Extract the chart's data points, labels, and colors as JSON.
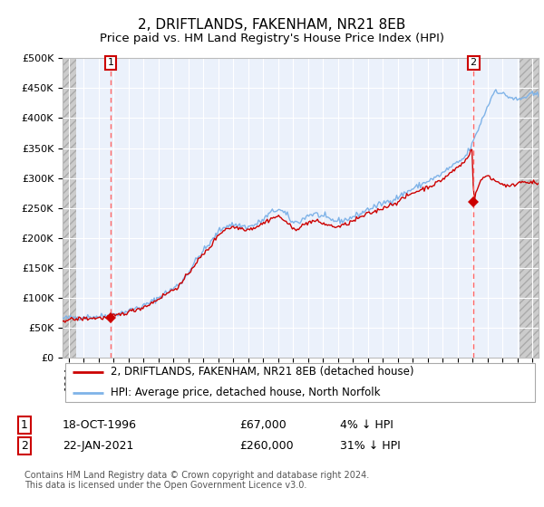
{
  "title": "2, DRIFTLANDS, FAKENHAM, NR21 8EB",
  "subtitle": "Price paid vs. HM Land Registry's House Price Index (HPI)",
  "ylim": [
    0,
    500000
  ],
  "yticks": [
    0,
    50000,
    100000,
    150000,
    200000,
    250000,
    300000,
    350000,
    400000,
    450000,
    500000
  ],
  "ytick_labels": [
    "£0",
    "£50K",
    "£100K",
    "£150K",
    "£200K",
    "£250K",
    "£300K",
    "£350K",
    "£400K",
    "£450K",
    "£500K"
  ],
  "xlim_start": 1993.6,
  "xlim_end": 2025.4,
  "hpi_color": "#7FB3E8",
  "price_color": "#CC0000",
  "marker_color": "#CC0000",
  "dashed_line_color": "#FF6666",
  "background_color": "#EBF1FB",
  "grid_color": "#FFFFFF",
  "legend_label_price": "2, DRIFTLANDS, FAKENHAM, NR21 8EB (detached house)",
  "legend_label_hpi": "HPI: Average price, detached house, North Norfolk",
  "sale1_year": 1996.8,
  "sale1_price": 67000,
  "sale2_year": 2021.05,
  "sale2_price": 260000,
  "hpi_anchors": [
    [
      1993.6,
      65000
    ],
    [
      1994.0,
      66000
    ],
    [
      1994.5,
      67000
    ],
    [
      1995.0,
      67500
    ],
    [
      1995.5,
      68000
    ],
    [
      1996.0,
      68500
    ],
    [
      1996.5,
      69500
    ],
    [
      1997.0,
      72000
    ],
    [
      1997.5,
      74000
    ],
    [
      1998.0,
      78000
    ],
    [
      1998.5,
      82000
    ],
    [
      1999.0,
      86000
    ],
    [
      1999.5,
      92000
    ],
    [
      2000.0,
      100000
    ],
    [
      2000.5,
      108000
    ],
    [
      2001.0,
      115000
    ],
    [
      2001.5,
      125000
    ],
    [
      2002.0,
      142000
    ],
    [
      2002.5,
      162000
    ],
    [
      2003.0,
      178000
    ],
    [
      2003.5,
      192000
    ],
    [
      2004.0,
      210000
    ],
    [
      2004.5,
      220000
    ],
    [
      2005.0,
      222000
    ],
    [
      2005.5,
      220000
    ],
    [
      2006.0,
      218000
    ],
    [
      2006.5,
      222000
    ],
    [
      2007.0,
      230000
    ],
    [
      2007.5,
      242000
    ],
    [
      2008.0,
      248000
    ],
    [
      2008.5,
      240000
    ],
    [
      2009.0,
      225000
    ],
    [
      2009.5,
      228000
    ],
    [
      2010.0,
      238000
    ],
    [
      2010.5,
      240000
    ],
    [
      2011.0,
      235000
    ],
    [
      2011.5,
      230000
    ],
    [
      2012.0,
      228000
    ],
    [
      2012.5,
      230000
    ],
    [
      2013.0,
      235000
    ],
    [
      2013.5,
      240000
    ],
    [
      2014.0,
      248000
    ],
    [
      2014.5,
      252000
    ],
    [
      2015.0,
      258000
    ],
    [
      2015.5,
      262000
    ],
    [
      2016.0,
      268000
    ],
    [
      2016.5,
      275000
    ],
    [
      2017.0,
      282000
    ],
    [
      2017.5,
      288000
    ],
    [
      2018.0,
      295000
    ],
    [
      2018.5,
      300000
    ],
    [
      2019.0,
      308000
    ],
    [
      2019.5,
      318000
    ],
    [
      2020.0,
      325000
    ],
    [
      2020.5,
      335000
    ],
    [
      2021.0,
      358000
    ],
    [
      2021.5,
      390000
    ],
    [
      2022.0,
      420000
    ],
    [
      2022.5,
      448000
    ],
    [
      2023.0,
      440000
    ],
    [
      2023.5,
      435000
    ],
    [
      2024.0,
      430000
    ],
    [
      2024.5,
      435000
    ],
    [
      2025.0,
      440000
    ],
    [
      2025.4,
      438000
    ]
  ],
  "price_anchors": [
    [
      1993.6,
      62000
    ],
    [
      1994.0,
      63000
    ],
    [
      1994.5,
      64000
    ],
    [
      1995.0,
      65000
    ],
    [
      1995.5,
      65500
    ],
    [
      1996.0,
      66000
    ],
    [
      1996.5,
      66500
    ],
    [
      1996.8,
      67000
    ],
    [
      1997.0,
      69000
    ],
    [
      1997.5,
      72000
    ],
    [
      1998.0,
      76000
    ],
    [
      1998.5,
      80000
    ],
    [
      1999.0,
      84000
    ],
    [
      1999.5,
      90000
    ],
    [
      2000.0,
      98000
    ],
    [
      2000.5,
      106000
    ],
    [
      2001.0,
      113000
    ],
    [
      2001.5,
      122000
    ],
    [
      2002.0,
      140000
    ],
    [
      2002.5,
      158000
    ],
    [
      2003.0,
      172000
    ],
    [
      2003.5,
      186000
    ],
    [
      2004.0,
      205000
    ],
    [
      2004.5,
      215000
    ],
    [
      2005.0,
      218000
    ],
    [
      2005.5,
      216000
    ],
    [
      2006.0,
      214000
    ],
    [
      2006.5,
      218000
    ],
    [
      2007.0,
      224000
    ],
    [
      2007.5,
      232000
    ],
    [
      2008.0,
      236000
    ],
    [
      2008.5,
      228000
    ],
    [
      2009.0,
      214000
    ],
    [
      2009.5,
      218000
    ],
    [
      2010.0,
      226000
    ],
    [
      2010.5,
      228000
    ],
    [
      2011.0,
      224000
    ],
    [
      2011.5,
      220000
    ],
    [
      2012.0,
      218000
    ],
    [
      2012.5,
      222000
    ],
    [
      2013.0,
      228000
    ],
    [
      2013.5,
      234000
    ],
    [
      2014.0,
      240000
    ],
    [
      2014.5,
      244000
    ],
    [
      2015.0,
      250000
    ],
    [
      2015.5,
      255000
    ],
    [
      2016.0,
      260000
    ],
    [
      2016.5,
      268000
    ],
    [
      2017.0,
      275000
    ],
    [
      2017.5,
      280000
    ],
    [
      2018.0,
      285000
    ],
    [
      2018.5,
      290000
    ],
    [
      2019.0,
      298000
    ],
    [
      2019.5,
      308000
    ],
    [
      2020.0,
      318000
    ],
    [
      2020.5,
      328000
    ],
    [
      2021.0,
      352000
    ],
    [
      2021.05,
      260000
    ],
    [
      2021.3,
      280000
    ],
    [
      2021.5,
      295000
    ],
    [
      2022.0,
      305000
    ],
    [
      2022.5,
      295000
    ],
    [
      2023.0,
      290000
    ],
    [
      2023.5,
      285000
    ],
    [
      2024.0,
      292000
    ],
    [
      2024.5,
      295000
    ],
    [
      2025.0,
      292000
    ],
    [
      2025.4,
      290000
    ]
  ],
  "hpi_noise_std": 2500,
  "price_noise_std": 1800,
  "footnote": "Contains HM Land Registry data © Crown copyright and database right 2024.\nThis data is licensed under the Open Government Licence v3.0."
}
